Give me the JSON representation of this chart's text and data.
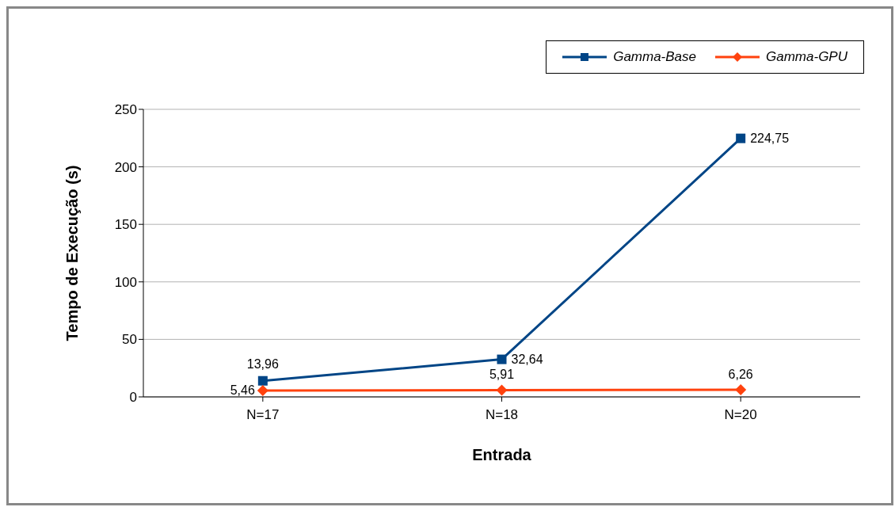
{
  "chart_data": {
    "type": "line",
    "xlabel": "Entrada",
    "ylabel": "Tempo de Execução (s)",
    "categories": [
      "N=17",
      "N=18",
      "N=20"
    ],
    "series": [
      {
        "name": "Gamma-Base",
        "color": "#004586",
        "marker": "square",
        "values": [
          13.96,
          32.64,
          224.75
        ],
        "value_labels": [
          "13,96",
          "32,64",
          "224,75"
        ]
      },
      {
        "name": "Gamma-GPU",
        "color": "#ff420e",
        "marker": "diamond",
        "values": [
          5.46,
          5.91,
          6.26
        ],
        "value_labels": [
          "5,46",
          "5,91",
          "6,26"
        ]
      }
    ],
    "ylim": [
      0,
      250
    ],
    "yticks": [
      0,
      50,
      100,
      150,
      200,
      250
    ],
    "grid": "y",
    "legend": "top right"
  }
}
